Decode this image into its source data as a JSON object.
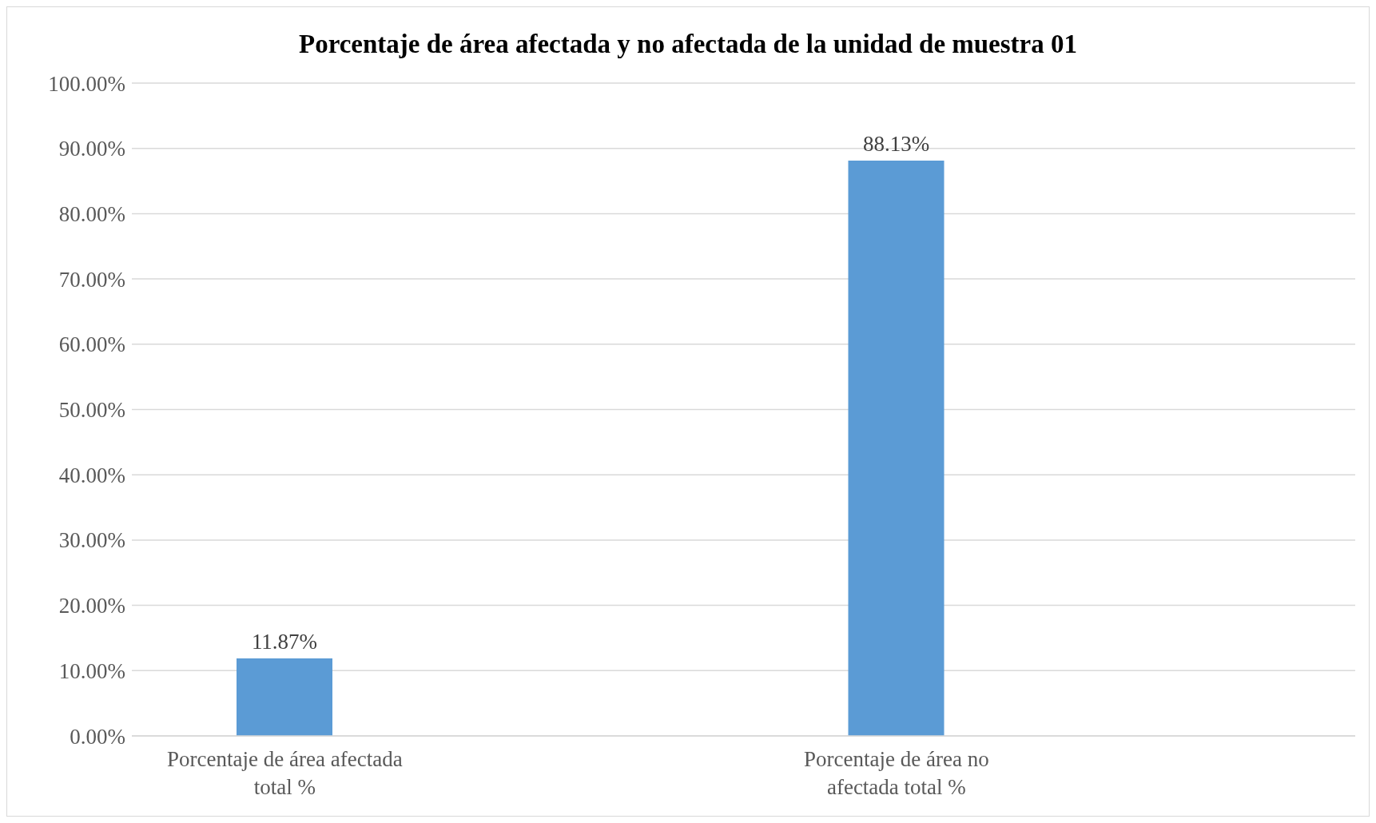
{
  "chart_data": {
    "type": "bar",
    "title": "Porcentaje de área afectada y no afectada de la unidad de muestra 01",
    "categories": [
      "Porcentaje de área afectada total %",
      null,
      "Porcentaje de área no afectada total %",
      null
    ],
    "values": [
      11.87,
      null,
      88.13,
      null
    ],
    "value_labels": [
      "11.87%",
      null,
      "88.13%",
      null
    ],
    "color": "#5b9bd5",
    "ylim": [
      0,
      100
    ],
    "yticks": [
      {
        "value": 0,
        "label": "0.00%"
      },
      {
        "value": 10,
        "label": "10.00%"
      },
      {
        "value": 20,
        "label": "20.00%"
      },
      {
        "value": 30,
        "label": "30.00%"
      },
      {
        "value": 40,
        "label": "40.00%"
      },
      {
        "value": 50,
        "label": "50.00%"
      },
      {
        "value": 60,
        "label": "60.00%"
      },
      {
        "value": 70,
        "label": "70.00%"
      },
      {
        "value": 80,
        "label": "80.00%"
      },
      {
        "value": 90,
        "label": "90.00%"
      },
      {
        "value": 100,
        "label": "100.00%"
      }
    ],
    "grid": "y",
    "legend": false
  }
}
